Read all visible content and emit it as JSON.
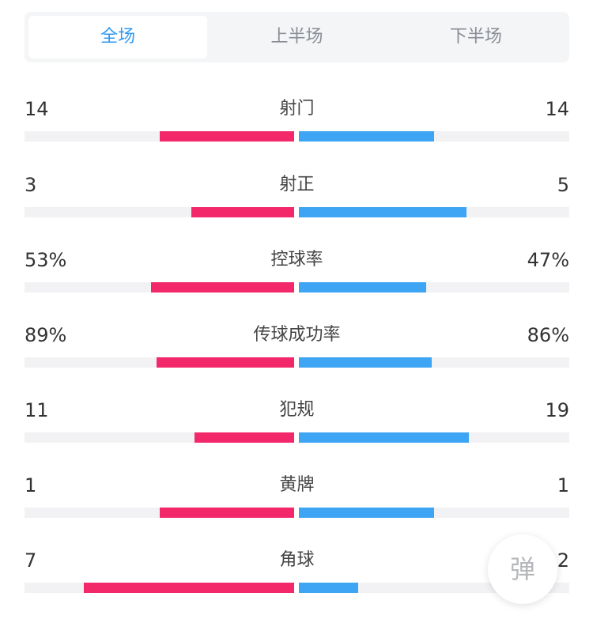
{
  "tabs": [
    {
      "label": "全场",
      "active": true
    },
    {
      "label": "上半场",
      "active": false
    },
    {
      "label": "下半场",
      "active": false
    }
  ],
  "colors": {
    "home": "#f2286b",
    "away": "#3da5f4",
    "active_tab": "#2f9af5"
  },
  "stats": [
    {
      "name": "射门",
      "home": "14",
      "away": "14",
      "home_fill": 0.5,
      "away_fill": 0.5
    },
    {
      "name": "射正",
      "home": "3",
      "away": "5",
      "home_fill": 0.38,
      "away_fill": 0.62
    },
    {
      "name": "控球率",
      "home": "53%",
      "away": "47%",
      "home_fill": 0.53,
      "away_fill": 0.47
    },
    {
      "name": "传球成功率",
      "home": "89%",
      "away": "86%",
      "home_fill": 0.51,
      "away_fill": 0.49
    },
    {
      "name": "犯规",
      "home": "11",
      "away": "19",
      "home_fill": 0.37,
      "away_fill": 0.63
    },
    {
      "name": "黄牌",
      "home": "1",
      "away": "1",
      "home_fill": 0.5,
      "away_fill": 0.5
    },
    {
      "name": "角球",
      "home": "7",
      "away": "2",
      "home_fill": 0.78,
      "away_fill": 0.22
    }
  ],
  "float_button": {
    "label": "弹"
  }
}
